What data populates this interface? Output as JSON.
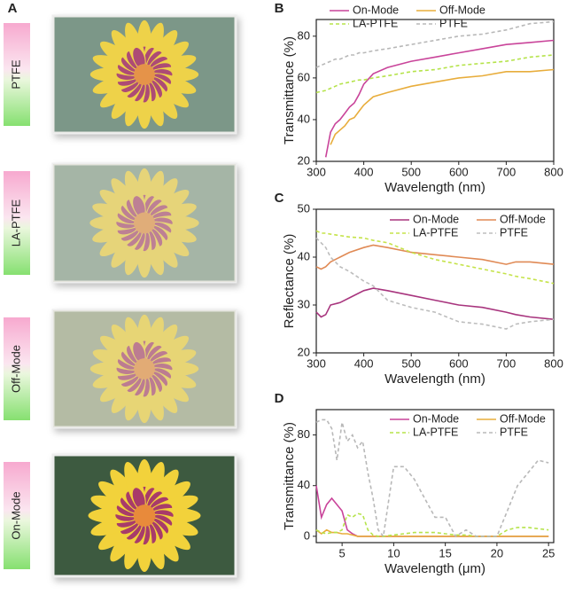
{
  "panel_a": {
    "label": "A",
    "samples": [
      "PTFE",
      "LA-PTFE",
      "Off-Mode",
      "On-Mode"
    ]
  },
  "chart_data": [
    {
      "type": "line",
      "panel": "B",
      "xlabel": "Wavelength (nm)",
      "ylabel": "Transmittance (%)",
      "xlim": [
        300,
        800
      ],
      "xticks": [
        300,
        400,
        500,
        600,
        700,
        800
      ],
      "ylim": [
        20,
        88
      ],
      "yticks": [
        20,
        40,
        60,
        80
      ],
      "x": [
        300,
        320,
        330,
        340,
        350,
        360,
        370,
        380,
        390,
        400,
        420,
        450,
        500,
        550,
        600,
        650,
        700,
        750,
        800
      ],
      "series": [
        {
          "name": "On-Mode",
          "color": "#c9449a",
          "dashed": false,
          "values": [
            null,
            22,
            34,
            38,
            40,
            43,
            46,
            48,
            52,
            57,
            62,
            65,
            68,
            70,
            72,
            74,
            76,
            77,
            78
          ]
        },
        {
          "name": "Off-Mode",
          "color": "#e8ad3c",
          "dashed": false,
          "values": [
            null,
            null,
            28,
            33,
            35,
            37,
            40,
            41,
            44,
            47,
            51,
            53,
            56,
            58,
            60,
            61,
            63,
            63,
            64
          ]
        },
        {
          "name": "LA-PTFE",
          "color": "#b5e34a",
          "dashed": true,
          "values": [
            53,
            54,
            55,
            56,
            57,
            57.5,
            58,
            58.5,
            59,
            59,
            60,
            61,
            63,
            64,
            66,
            67,
            68,
            70,
            71
          ]
        },
        {
          "name": "PTFE",
          "color": "#b8b8b8",
          "dashed": true,
          "values": [
            65,
            67,
            68,
            69,
            69,
            70,
            71,
            71,
            72,
            72,
            73,
            74,
            76,
            78,
            80,
            81,
            83,
            86,
            87
          ]
        }
      ]
    },
    {
      "type": "line",
      "panel": "C",
      "xlabel": "Wavelength (nm)",
      "ylabel": "Reflectance (%)",
      "xlim": [
        300,
        800
      ],
      "xticks": [
        300,
        400,
        500,
        600,
        700,
        800
      ],
      "ylim": [
        20,
        50
      ],
      "yticks": [
        20,
        30,
        40,
        50
      ],
      "x": [
        300,
        310,
        320,
        330,
        350,
        370,
        400,
        420,
        450,
        500,
        550,
        600,
        650,
        700,
        720,
        750,
        800
      ],
      "series": [
        {
          "name": "On-Mode",
          "color": "#a8357e",
          "dashed": false,
          "values": [
            28.5,
            27.5,
            28,
            30,
            30.5,
            31.5,
            33,
            33.5,
            33,
            32,
            31,
            30,
            29.5,
            28.5,
            28,
            27.5,
            27
          ]
        },
        {
          "name": "Off-Mode",
          "color": "#e08a55",
          "dashed": false,
          "values": [
            38,
            37.5,
            38,
            39,
            40,
            41,
            42,
            42.5,
            42,
            41,
            40.5,
            40,
            39.5,
            38.5,
            39,
            39,
            38.5
          ]
        },
        {
          "name": "LA-PTFE",
          "color": "#c5e34a",
          "dashed": true,
          "values": [
            45.5,
            45,
            45,
            44.8,
            44.5,
            44.2,
            44,
            43.5,
            43,
            41,
            39.5,
            38.5,
            37.5,
            36.5,
            36,
            35.5,
            34.5
          ]
        },
        {
          "name": "PTFE",
          "color": "#bdbdbd",
          "dashed": true,
          "values": [
            44,
            43,
            42,
            40,
            38,
            37,
            35,
            34,
            31,
            29.5,
            28.5,
            26.5,
            26,
            25,
            26,
            26.5,
            27
          ]
        }
      ]
    },
    {
      "type": "line",
      "panel": "D",
      "xlabel": "Wavelength (μm)",
      "ylabel": "Transmittance (%)",
      "xlim": [
        2.5,
        25.5
      ],
      "xticks": [
        5,
        10,
        15,
        20,
        25
      ],
      "ylim": [
        -5,
        100
      ],
      "yticks": [
        0,
        40,
        80
      ],
      "x": [
        2.5,
        3,
        3.5,
        4,
        4.5,
        5,
        5.5,
        6,
        6.5,
        7,
        7.5,
        8,
        8.5,
        9,
        10,
        11,
        12,
        13,
        14,
        15,
        16,
        17,
        18,
        19,
        20,
        21,
        22,
        23,
        24,
        25
      ],
      "series": [
        {
          "name": "On-Mode",
          "color": "#c9449a",
          "dashed": false,
          "values": [
            40,
            15,
            25,
            30,
            25,
            20,
            5,
            2,
            0,
            0,
            0,
            0,
            0,
            0,
            0,
            0,
            0,
            0,
            0,
            0,
            0,
            0,
            0,
            0,
            0,
            0,
            0,
            0,
            0,
            0
          ]
        },
        {
          "name": "Off-Mode",
          "color": "#e8ad3c",
          "dashed": false,
          "values": [
            5,
            2,
            5,
            3,
            3,
            2,
            2,
            1,
            0,
            0,
            0,
            0,
            0,
            0,
            0,
            0,
            0,
            0,
            0,
            0,
            0,
            0,
            0,
            0,
            0,
            0,
            0,
            0,
            0,
            0
          ]
        },
        {
          "name": "LA-PTFE",
          "color": "#b5e34a",
          "dashed": true,
          "values": [
            5,
            3,
            2,
            3,
            3,
            5,
            17,
            15,
            18,
            17,
            5,
            1,
            0,
            0,
            1,
            2,
            3,
            3,
            3,
            2,
            1,
            1,
            0,
            0,
            0,
            5,
            7,
            7,
            6,
            5
          ]
        },
        {
          "name": "PTFE",
          "color": "#b8b8b8",
          "dashed": true,
          "values": [
            90,
            92,
            92,
            85,
            60,
            90,
            75,
            80,
            70,
            75,
            50,
            30,
            5,
            0,
            55,
            55,
            45,
            30,
            15,
            15,
            0,
            5,
            0,
            0,
            0,
            20,
            40,
            50,
            60,
            58
          ]
        }
      ]
    }
  ]
}
